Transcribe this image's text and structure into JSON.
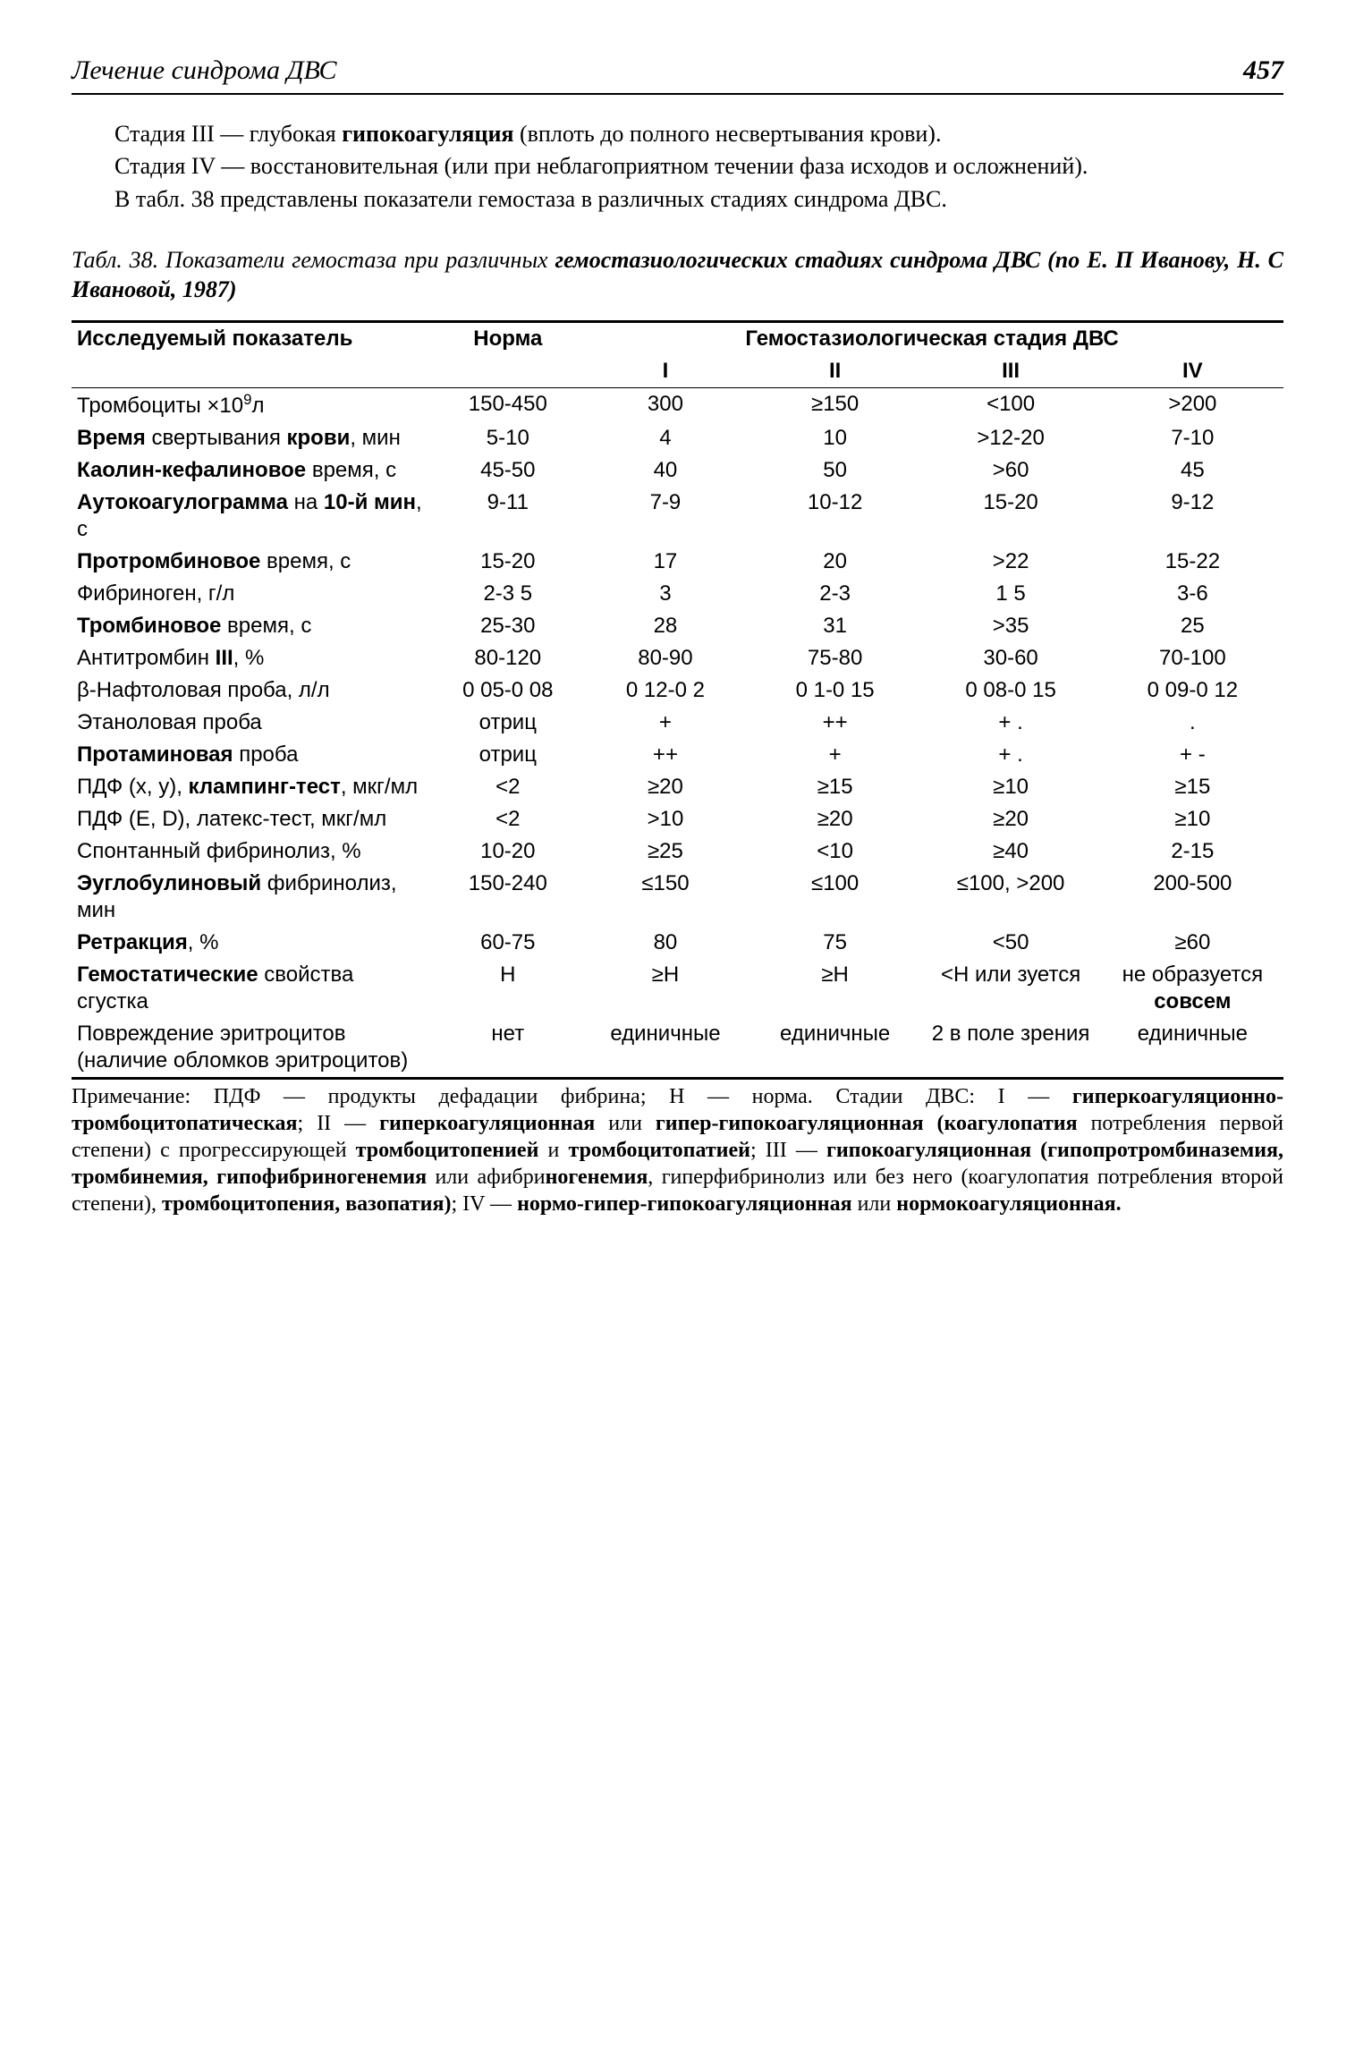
{
  "header": {
    "running_title": "Лечение синдрома ДВС",
    "page_number": "457"
  },
  "body": {
    "p1_a": "Стадия III — глубокая ",
    "p1_b": "гипокоагуляция",
    "p1_c": " (вплоть до полного несвертывания крови).",
    "p2": "Стадия IV — восстановительная (или при неблагоприятном течении фаза исходов и осложнений).",
    "p3": "В табл. 38 представлены показатели гемостаза в различных стадиях синдрома ДВС."
  },
  "table": {
    "caption_a": "Табл. 38. Показатели гемостаза при различных ",
    "caption_b": "гемостазиологических стадиях синдрома ДВС (по Е. П Иванову, Н. С Ивановой, 1987)",
    "head": {
      "param": "Исследуемый показатель",
      "norm": "Норма",
      "stage_group": "Гемостазиологическая стадия ДВС",
      "s1": "I",
      "s2": "II",
      "s3": "III",
      "s4": "IV"
    },
    "rows": [
      {
        "p_html": "Тромбоциты ×10<sup>9</sup>л",
        "n": "150-450",
        "v1": "300",
        "v2": "≥150",
        "v3": "<100",
        "v4": ">200"
      },
      {
        "p_html": "<b>Время</b> свертывания <b>крови</b>, мин",
        "n": "5-10",
        "v1": "4",
        "v2": "10",
        "v3": ">12-20",
        "v4": "7-10"
      },
      {
        "p_html": "<b>Каолин-кефалиновое</b> время, с",
        "n": "45-50",
        "v1": "40",
        "v2": "50",
        "v3": ">60",
        "v4": "45"
      },
      {
        "p_html": "<b>Аутокоагулограмма</b> на <b>10-й мин</b>, с",
        "n": "9-11",
        "v1": "7-9",
        "v2": "10-12",
        "v3": "15-20",
        "v4": "9-12"
      },
      {
        "p_html": "<b>Протромбиновое</b> время, с",
        "n": "15-20",
        "v1": "17",
        "v2": "20",
        "v3": ">22",
        "v4": "15-22"
      },
      {
        "p_html": "Фибриноген, г/л",
        "n": "2-3 5",
        "v1": "3",
        "v2": "2-3",
        "v3": "1 5",
        "v4": "3-6"
      },
      {
        "p_html": "<b>Тромбиновое</b> время, с",
        "n": "25-30",
        "v1": "28",
        "v2": "31",
        "v3": ">35",
        "v4": "25"
      },
      {
        "p_html": "Антитромбин <b>III</b>, %",
        "n": "80-120",
        "v1": "80-90",
        "v2": "75-80",
        "v3": "30-60",
        "v4": "70-100"
      },
      {
        "p_html": "β-Нафтоловая проба, л/л",
        "n": "0 05-0 08",
        "v1": "0 12-0 2",
        "v2": "0 1-0 15",
        "v3": "0 08-0 15",
        "v4": "0 09-0 12"
      },
      {
        "p_html": "Этаноловая проба",
        "n": "отриц",
        "v1": "+",
        "v2": "++",
        "v3": "+ .",
        "v4": "."
      },
      {
        "p_html": "<b>Протаминовая</b> проба",
        "n": "отриц",
        "v1": "++",
        "v2": "+",
        "v3": "+ .",
        "v4": "+ -"
      },
      {
        "p_html": "ПДФ (x, y), <b>клампинг-тест</b>, мкг/мл",
        "n": "<2",
        "v1": "≥20",
        "v2": "≥15",
        "v3": "≥10",
        "v4": "≥15"
      },
      {
        "p_html": "ПДФ (E, D), латекс-тест, мкг/мл",
        "n": "<2",
        "v1": ">10",
        "v2": "≥20",
        "v3": "≥20",
        "v4": "≥10"
      },
      {
        "p_html": "Спонтанный фибринолиз, %",
        "n": "10-20",
        "v1": "≥25",
        "v2": "<10",
        "v3": "≥40",
        "v4": "2-15"
      },
      {
        "p_html": "<b>Эуглобулиновый</b> фибринолиз, мин",
        "n": "150-240",
        "v1": "≤150",
        "v2": "≤100",
        "v3": "≤100, >200",
        "v4": "200-500"
      },
      {
        "p_html": "<b>Ретракция</b>, %",
        "n": "60-75",
        "v1": "80",
        "v2": "75",
        "v3": "<50",
        "v4": "≥60"
      },
      {
        "p_html": "<b>Гемостатические</b> свойства сгустка",
        "n": "Н",
        "v1": "≥Н",
        "v2": "≥Н",
        "v3": "<Н или зуется",
        "v4": "не образуется <b>совсем</b>"
      },
      {
        "p_html": "Повреждение эритроцитов (наличие обломков эритроцитов)",
        "n": "нет",
        "v1": "единичные",
        "v2": "единичные",
        "v3": "2 в поле зрения",
        "v4": "единичные"
      }
    ]
  },
  "note": {
    "t1": "Примечание: ПДФ — продукты дефадации фибрина; Н — норма. Стадии ДВС: I — ",
    "t2": "гиперкоагуляционно-тромбоцитопатическая",
    "t3": "; II — ",
    "t4": "гиперкоагуляционная",
    "t5": " или ",
    "t6": "гипер-гипокоагуляционная (коагулопатия",
    "t7": " потребления первой степени) с прогрессирующей ",
    "t8": "тромбоцитопенией",
    "t9": " и ",
    "t10": "тромбоцитопатией",
    "t11": "; III — ",
    "t12": "гипокоагуляционная (гипопротромбиназемия, тромбинемия, гипофибриногенемия",
    "t13": " или афибри",
    "t14": "ногенемия",
    "t15": ", гиперфибринолиз или без него (коагулопатия потребления второй степени), ",
    "t16": "тромбоцитопения, вазопатия)",
    "t17": "; IV — ",
    "t18": "нормо-гипер-гипокоагуляционная",
    "t19": " или ",
    "t20": "нормокоагуляционная."
  }
}
